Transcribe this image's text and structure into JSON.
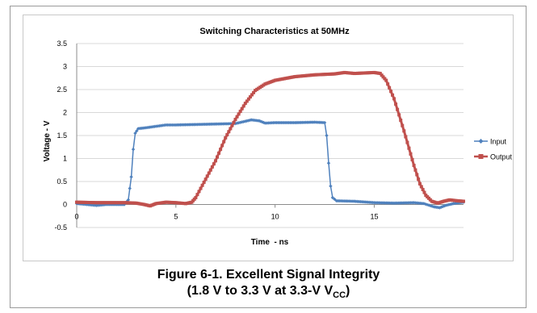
{
  "figure": {
    "caption_line1": "Figure 6-1. Excellent Signal Integrity",
    "caption_line2_prefix": "(1.8 V to 3.3 V at 3.3-V V",
    "caption_line2_sub": "CC",
    "caption_line2_suffix": ")"
  },
  "colors": {
    "input": "#4f81bd",
    "output": "#c0504d",
    "grid": "#d9d9d9"
  },
  "chart_data": {
    "type": "line",
    "title": "Switching Characteristics at 50MHz",
    "xlabel": "Time  - ns",
    "ylabel": "Voltage - V",
    "xlim": [
      0,
      19.5
    ],
    "ylim": [
      -0.5,
      3.5
    ],
    "xticks": [
      0,
      5,
      10,
      15
    ],
    "yticks": [
      -0.5,
      0,
      0.5,
      1,
      1.5,
      2,
      2.5,
      3,
      3.5
    ],
    "grid": "horizontal",
    "legend_position": "right",
    "series": [
      {
        "name": "Input",
        "marker": "diamond",
        "points": [
          [
            0,
            0.02
          ],
          [
            0.5,
            0.0
          ],
          [
            1,
            -0.02
          ],
          [
            1.5,
            0.0
          ],
          [
            2,
            0.0
          ],
          [
            2.4,
            0.0
          ],
          [
            2.6,
            0.1
          ],
          [
            2.75,
            0.6
          ],
          [
            2.85,
            1.2
          ],
          [
            2.95,
            1.55
          ],
          [
            3.1,
            1.65
          ],
          [
            3.5,
            1.67
          ],
          [
            4,
            1.7
          ],
          [
            4.5,
            1.73
          ],
          [
            5,
            1.73
          ],
          [
            6,
            1.74
          ],
          [
            7,
            1.75
          ],
          [
            8,
            1.76
          ],
          [
            8.4,
            1.8
          ],
          [
            8.8,
            1.84
          ],
          [
            9.2,
            1.82
          ],
          [
            9.5,
            1.77
          ],
          [
            10,
            1.78
          ],
          [
            11,
            1.78
          ],
          [
            12,
            1.79
          ],
          [
            12.5,
            1.78
          ],
          [
            12.6,
            1.5
          ],
          [
            12.7,
            0.9
          ],
          [
            12.8,
            0.4
          ],
          [
            12.9,
            0.15
          ],
          [
            13.1,
            0.08
          ],
          [
            14,
            0.07
          ],
          [
            15,
            0.04
          ],
          [
            16,
            0.03
          ],
          [
            17,
            0.04
          ],
          [
            17.5,
            0.02
          ],
          [
            18,
            -0.05
          ],
          [
            18.3,
            -0.07
          ],
          [
            18.6,
            -0.02
          ],
          [
            19,
            0.02
          ],
          [
            19.5,
            0.05
          ]
        ]
      },
      {
        "name": "Output",
        "marker": "square",
        "points": [
          [
            0,
            0.05
          ],
          [
            1,
            0.04
          ],
          [
            2,
            0.04
          ],
          [
            2.5,
            0.04
          ],
          [
            3,
            0.03
          ],
          [
            3.4,
            0.0
          ],
          [
            3.7,
            -0.03
          ],
          [
            4,
            0.02
          ],
          [
            4.5,
            0.05
          ],
          [
            5,
            0.04
          ],
          [
            5.5,
            0.02
          ],
          [
            5.8,
            0.05
          ],
          [
            6,
            0.15
          ],
          [
            6.5,
            0.55
          ],
          [
            7,
            0.95
          ],
          [
            7.5,
            1.45
          ],
          [
            8,
            1.85
          ],
          [
            8.5,
            2.2
          ],
          [
            9,
            2.48
          ],
          [
            9.5,
            2.62
          ],
          [
            10,
            2.7
          ],
          [
            11,
            2.78
          ],
          [
            12,
            2.82
          ],
          [
            13,
            2.84
          ],
          [
            13.5,
            2.87
          ],
          [
            14,
            2.85
          ],
          [
            14.5,
            2.86
          ],
          [
            15,
            2.87
          ],
          [
            15.3,
            2.85
          ],
          [
            15.6,
            2.7
          ],
          [
            16,
            2.3
          ],
          [
            16.5,
            1.6
          ],
          [
            17,
            0.85
          ],
          [
            17.3,
            0.45
          ],
          [
            17.6,
            0.2
          ],
          [
            17.9,
            0.07
          ],
          [
            18.2,
            0.03
          ],
          [
            18.5,
            0.07
          ],
          [
            18.8,
            0.1
          ],
          [
            19.2,
            0.08
          ],
          [
            19.5,
            0.07
          ]
        ]
      }
    ]
  }
}
